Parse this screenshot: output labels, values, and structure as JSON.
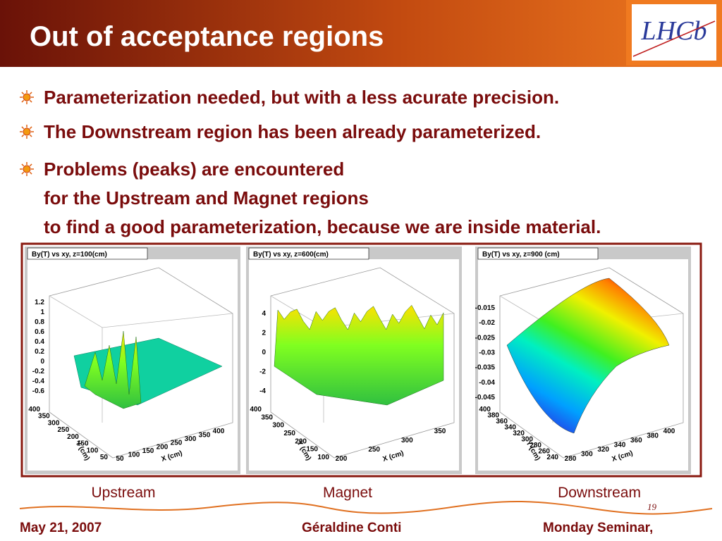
{
  "header": {
    "title": "Out of acceptance regions",
    "logo": "LHCb"
  },
  "bullets": [
    "Parameterization needed, but with a less acurate precision.",
    "The Downstream region has been already parameterized.",
    "Problems (peaks) are encountered for the Upstream and Magnet regions to find a good parameterization, because we are inside material."
  ],
  "plots": [
    {
      "title": "By(T) vs xy, z=100(cm)",
      "caption": "Upstream",
      "z_ticks": [
        "1.2",
        "1",
        "0.8",
        "0.6",
        "0.4",
        "0.2",
        "0",
        "-0.2",
        "-0.4",
        "-0.6"
      ],
      "y_ticks": [
        "400",
        "350",
        "300",
        "250",
        "200",
        "150",
        "100",
        "50"
      ],
      "y_label": "Y (cm)",
      "x_ticks": [
        "50",
        "100",
        "150",
        "200",
        "250",
        "300",
        "350",
        "400"
      ],
      "x_label": "X (cm)"
    },
    {
      "title": "By(T) vs xy, z=600(cm)",
      "caption": "Magnet",
      "z_ticks": [
        "4",
        "2",
        "0",
        "-2",
        "-4"
      ],
      "y_ticks": [
        "400",
        "350",
        "300",
        "250",
        "200",
        "150",
        "100"
      ],
      "y_label": "Y (cm)",
      "x_ticks": [
        "200",
        "250",
        "300",
        "350"
      ],
      "x_label": "X (cm)"
    },
    {
      "title": "By(T) vs xy, z=900 (cm)",
      "caption": "Downstream",
      "z_ticks": [
        "-0.015",
        "-0.02",
        "-0.025",
        "-0.03",
        "-0.035",
        "-0.04",
        "-0.045"
      ],
      "y_ticks": [
        "400",
        "380",
        "360",
        "340",
        "320",
        "300",
        "280",
        "260",
        "240"
      ],
      "y_label": "Y (cm)",
      "x_ticks": [
        "280",
        "300",
        "320",
        "340",
        "360",
        "380",
        "400"
      ],
      "x_label": "X (cm)"
    }
  ],
  "footer": {
    "date": "May 21, 2007",
    "author": "Géraldine Conti",
    "event": "Monday Seminar,",
    "page": "19"
  }
}
